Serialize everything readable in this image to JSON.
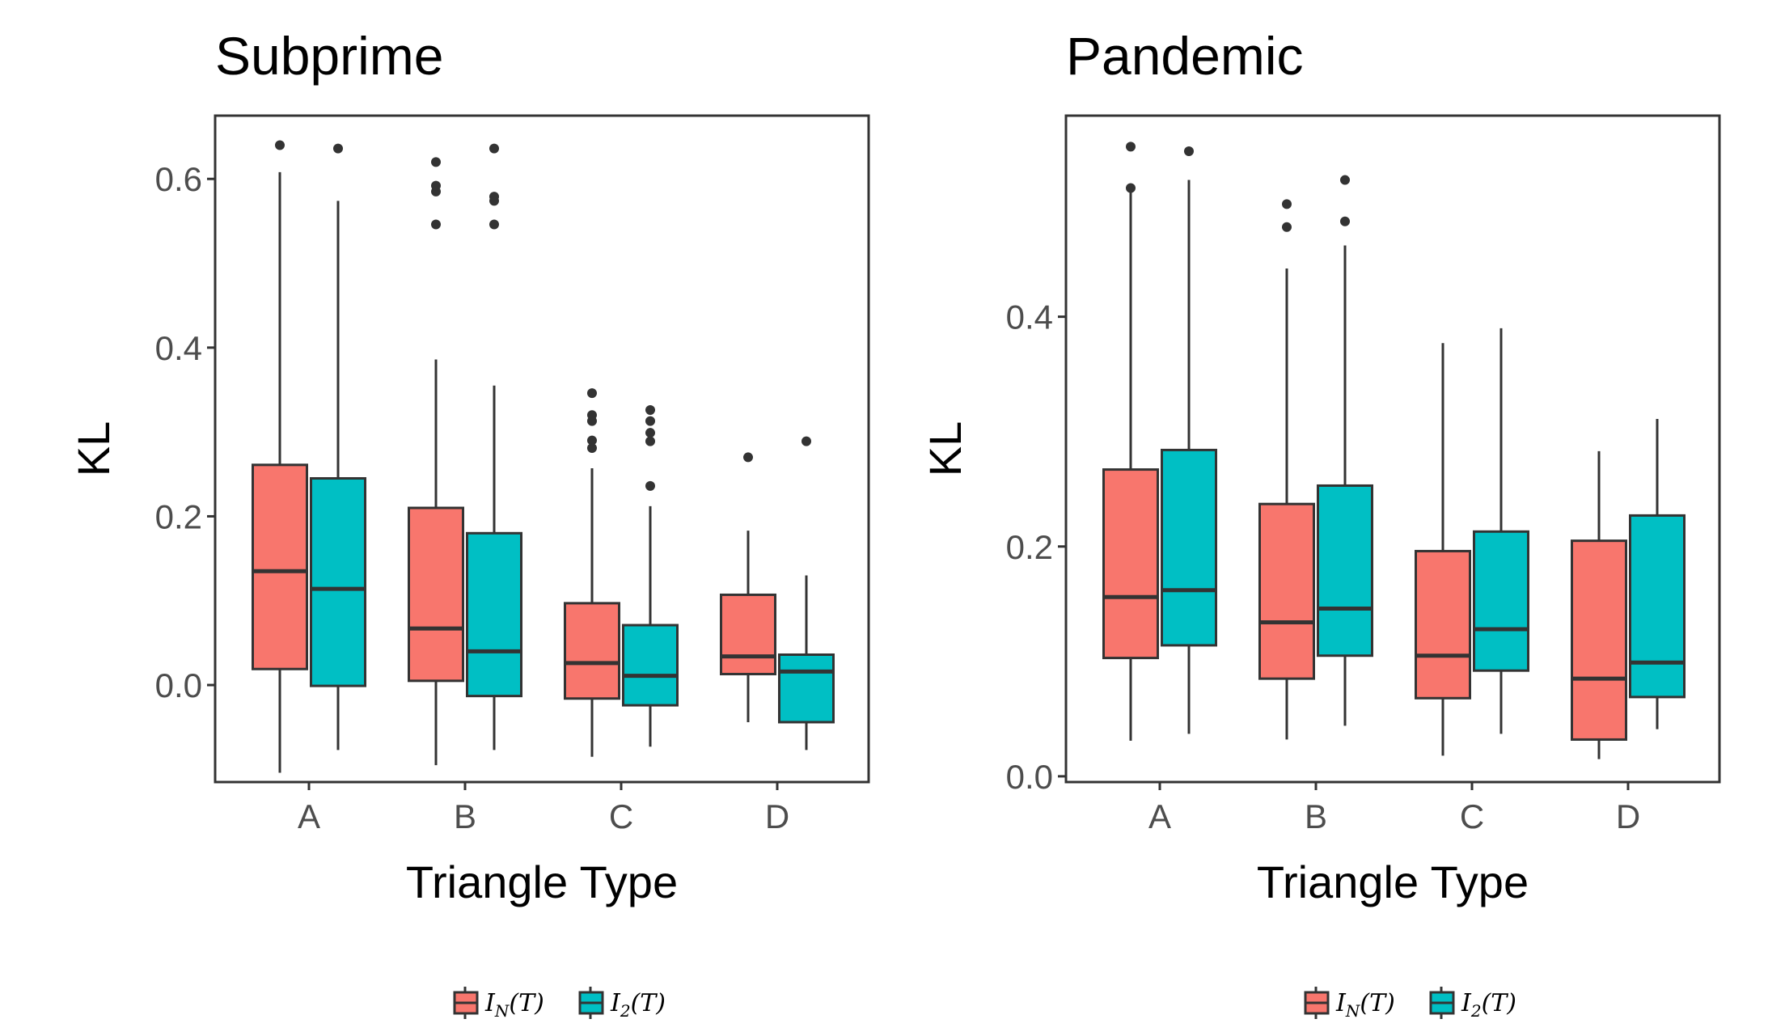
{
  "legend": {
    "entries": [
      {
        "label": "I_N(T)",
        "main": "I",
        "sub": "N",
        "arg": "(T)",
        "color": "#F8766D"
      },
      {
        "label": "I_2(T)",
        "main": "I",
        "sub": "2",
        "arg": "(T)",
        "color": "#00BFC4"
      }
    ]
  },
  "chart_data": [
    {
      "type": "box",
      "title": "Subprime",
      "xlabel": "Triangle Type",
      "ylabel": "KL",
      "categories": [
        "A",
        "B",
        "C",
        "D"
      ],
      "ylim": [
        -0.115,
        0.675
      ],
      "yticks": [
        0.0,
        0.2,
        0.4,
        0.6
      ],
      "ytick_labels": [
        "0.0",
        "0.2",
        "0.4",
        "0.6"
      ],
      "grid": false,
      "legend_position": "bottom",
      "series": [
        {
          "name": "I_N(T)",
          "color": "#F8766D",
          "boxes": [
            {
              "category": "A",
              "min": -0.104,
              "q1": 0.019,
              "median": 0.135,
              "q3": 0.261,
              "max": 0.608,
              "outliers": [
                0.64
              ]
            },
            {
              "category": "B",
              "min": -0.095,
              "q1": 0.005,
              "median": 0.067,
              "q3": 0.21,
              "max": 0.386,
              "outliers": [
                0.546,
                0.585,
                0.592,
                0.62
              ]
            },
            {
              "category": "C",
              "min": -0.085,
              "q1": -0.016,
              "median": 0.026,
              "q3": 0.097,
              "max": 0.257,
              "outliers": [
                0.281,
                0.29,
                0.313,
                0.32,
                0.346
              ]
            },
            {
              "category": "D",
              "min": -0.044,
              "q1": 0.013,
              "median": 0.034,
              "q3": 0.107,
              "max": 0.183,
              "outliers": [
                0.27
              ]
            }
          ]
        },
        {
          "name": "I_2(T)",
          "color": "#00BFC4",
          "boxes": [
            {
              "category": "A",
              "min": -0.077,
              "q1": -0.001,
              "median": 0.114,
              "q3": 0.245,
              "max": 0.574,
              "outliers": [
                0.636
              ]
            },
            {
              "category": "B",
              "min": -0.077,
              "q1": -0.013,
              "median": 0.04,
              "q3": 0.18,
              "max": 0.355,
              "outliers": [
                0.546,
                0.574,
                0.579,
                0.636
              ]
            },
            {
              "category": "C",
              "min": -0.073,
              "q1": -0.024,
              "median": 0.011,
              "q3": 0.071,
              "max": 0.212,
              "outliers": [
                0.236,
                0.289,
                0.299,
                0.313,
                0.326
              ]
            },
            {
              "category": "D",
              "min": -0.077,
              "q1": -0.044,
              "median": 0.016,
              "q3": 0.036,
              "max": 0.13,
              "outliers": [
                0.289
              ]
            }
          ]
        }
      ]
    },
    {
      "type": "box",
      "title": "Pandemic",
      "xlabel": "Triangle Type",
      "ylabel": "KL",
      "categories": [
        "A",
        "B",
        "C",
        "D"
      ],
      "ylim": [
        -0.005,
        0.575
      ],
      "yticks": [
        0.0,
        0.2,
        0.4
      ],
      "ytick_labels": [
        "0.0",
        "0.2",
        "0.4"
      ],
      "grid": false,
      "legend_position": "bottom",
      "series": [
        {
          "name": "I_N(T)",
          "color": "#F8766D",
          "boxes": [
            {
              "category": "A",
              "min": 0.031,
              "q1": 0.103,
              "median": 0.156,
              "q3": 0.267,
              "max": 0.512,
              "outliers": [
                0.548,
                0.512
              ]
            },
            {
              "category": "B",
              "min": 0.032,
              "q1": 0.085,
              "median": 0.134,
              "q3": 0.237,
              "max": 0.442,
              "outliers": [
                0.478,
                0.498
              ]
            },
            {
              "category": "C",
              "min": 0.018,
              "q1": 0.068,
              "median": 0.105,
              "q3": 0.196,
              "max": 0.377,
              "outliers": []
            },
            {
              "category": "D",
              "min": 0.015,
              "q1": 0.032,
              "median": 0.085,
              "q3": 0.205,
              "max": 0.283,
              "outliers": []
            }
          ]
        },
        {
          "name": "I_2(T)",
          "color": "#00BFC4",
          "boxes": [
            {
              "category": "A",
              "min": 0.037,
              "q1": 0.114,
              "median": 0.162,
              "q3": 0.284,
              "max": 0.519,
              "outliers": [
                0.544
              ]
            },
            {
              "category": "B",
              "min": 0.044,
              "q1": 0.105,
              "median": 0.146,
              "q3": 0.253,
              "max": 0.462,
              "outliers": [
                0.483,
                0.519
              ]
            },
            {
              "category": "C",
              "min": 0.037,
              "q1": 0.092,
              "median": 0.128,
              "q3": 0.213,
              "max": 0.39,
              "outliers": []
            },
            {
              "category": "D",
              "min": 0.041,
              "q1": 0.069,
              "median": 0.099,
              "q3": 0.227,
              "max": 0.311,
              "outliers": []
            }
          ]
        }
      ]
    }
  ]
}
